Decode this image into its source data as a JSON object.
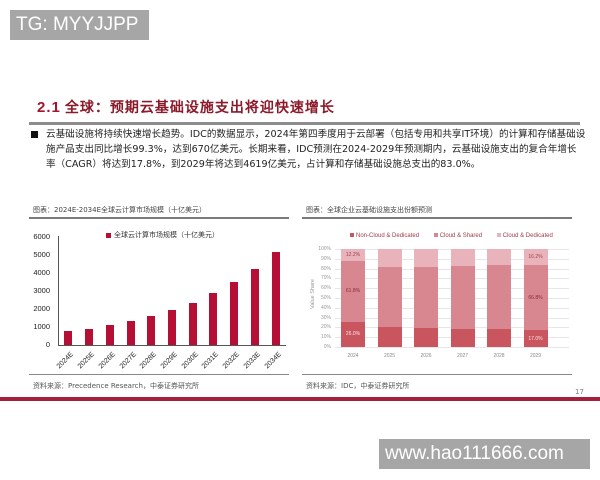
{
  "watermarks": {
    "top": "TG: MYYJJPP",
    "bottom": "www.hao111666.com"
  },
  "section": {
    "number": "2.1",
    "title": "全球：预期云基础设施支出将迎快速增长"
  },
  "bullet": {
    "text": "云基础设施将持续快速增长趋势。IDC的数据显示，2024年第四季度用于云部署（包括专用和共享IT环境）的计算和存储基础设施产品支出同比增长99.3%，达到670亿美元。长期来看，IDC预测在2024-2029年预测期内，云基础设施支出的复合年增长率（CAGR）将达到17.8%，到2029年将达到4619亿美元，占计算和存储基础设施总支出的83.0%。"
  },
  "left_figure": {
    "caption": "图表：2024E-2034E全球云计算市场规模（十亿美元）",
    "source": "资料来源：Precedence Research，中泰证券研究所"
  },
  "right_figure": {
    "caption": "图表：全球企业云基础设施支出份额预测",
    "source": "资料来源：IDC，中泰证券研究所"
  },
  "page_number": "17",
  "colors": {
    "title_red": "#8b1a2a",
    "bar_red": "#b50f35",
    "non_cloud": "#c9555f",
    "cloud_shared": "#d8868f",
    "cloud_dedicated": "#e8b3ba",
    "footer_band": "#a3213a"
  },
  "chart_data": [
    {
      "type": "bar",
      "title": "2024E-2034E全球云计算市场规模（十亿美元）",
      "legend": [
        "全球云计算市场规模（十亿美元）"
      ],
      "categories": [
        "2024E",
        "2025E",
        "2026E",
        "2027E",
        "2028E",
        "2029E",
        "2030E",
        "2031E",
        "2032E",
        "2033E",
        "2034E"
      ],
      "values": [
        770,
        910,
        1100,
        1330,
        1600,
        1950,
        2360,
        2880,
        3480,
        4220,
        5150
      ],
      "yticks": [
        "0",
        "1000",
        "2000",
        "3000",
        "4000",
        "5000",
        "6000"
      ],
      "xlabel": "",
      "ylabel": "",
      "ylim": [
        0,
        6000
      ],
      "grid": false,
      "legend_position": "top"
    },
    {
      "type": "bar",
      "stacked": true,
      "title": "全球企业云基础设施支出份额预测",
      "categories": [
        "2024",
        "2025",
        "2026",
        "2027",
        "2028",
        "2029"
      ],
      "series": [
        {
          "name": "Non-Cloud & Dedicated",
          "values": [
            26.0,
            20.0,
            19.0,
            18.0,
            18.0,
            17.0
          ]
        },
        {
          "name": "Cloud & Shared",
          "values": [
            61.8,
            62.0,
            63.0,
            65.0,
            65.5,
            66.8
          ]
        },
        {
          "name": "Cloud & Dedicated",
          "values": [
            12.2,
            18.0,
            18.0,
            17.0,
            16.5,
            16.2
          ]
        }
      ],
      "data_labels": {
        "2024": [
          "26.0%",
          "61.8%",
          "12.2%"
        ],
        "2029": [
          "17.0%",
          "66.8%",
          "16.2%"
        ]
      },
      "yticks": [
        "0%",
        "10%",
        "20%",
        "30%",
        "40%",
        "50%",
        "60%",
        "70%",
        "80%",
        "90%",
        "100%"
      ],
      "xlabel": "",
      "ylabel": "Value Share",
      "ylim": [
        0,
        100
      ],
      "grid": true,
      "legend_position": "top"
    }
  ]
}
